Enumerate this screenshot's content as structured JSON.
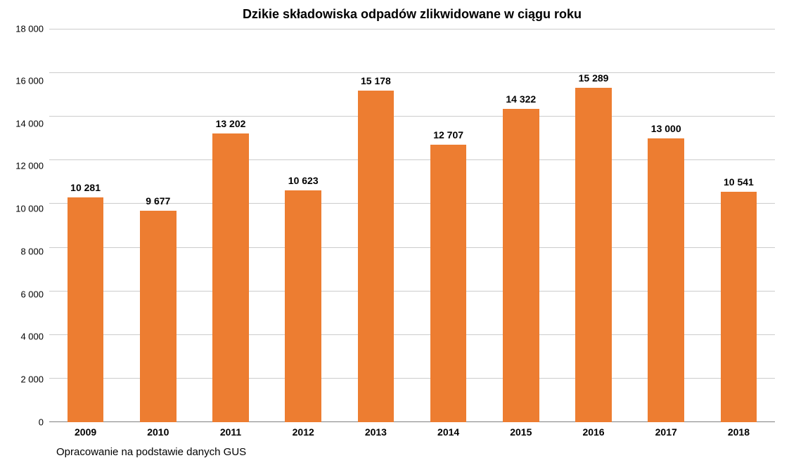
{
  "chart": {
    "type": "bar",
    "title": "Dzikie składowiska odpadów zlikwidowane w ciągu roku",
    "title_fontsize": 18,
    "categories": [
      "2009",
      "2010",
      "2011",
      "2012",
      "2013",
      "2014",
      "2015",
      "2016",
      "2017",
      "2018"
    ],
    "values": [
      10281,
      9677,
      13202,
      10623,
      15178,
      12707,
      14322,
      15289,
      13000,
      10541
    ],
    "value_labels": [
      "10 281",
      "9 677",
      "13 202",
      "10 623",
      "15 178",
      "12 707",
      "14 322",
      "15 289",
      "13 000",
      "10 541"
    ],
    "bar_color": "#ed7d31",
    "bar_width": 0.5,
    "ylim": [
      0,
      18000
    ],
    "ytick_step": 2000,
    "ytick_labels": [
      "18 000",
      "16 000",
      "14 000",
      "12 000",
      "10 000",
      "8 000",
      "6 000",
      "4 000",
      "2 000",
      "0"
    ],
    "background_color": "#ffffff",
    "grid_color": "#cccccc",
    "axis_color": "#808080",
    "label_fontsize": 14,
    "tick_fontsize": 13,
    "x_tick_fontsize": 14,
    "footer_note": "Opracowanie na podstawie danych  GUS",
    "footer_fontsize": 15
  }
}
